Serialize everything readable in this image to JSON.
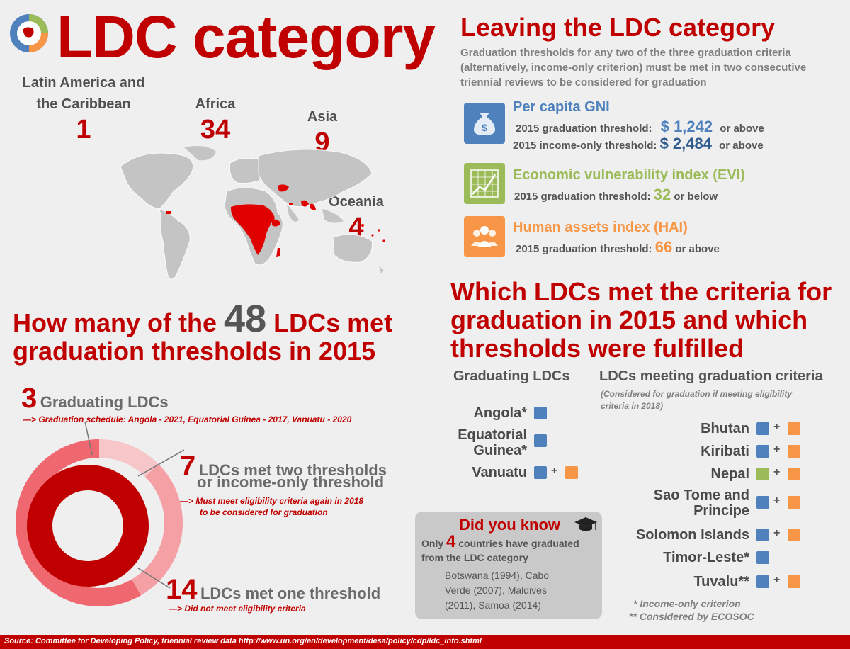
{
  "header": {
    "title": "LDC category"
  },
  "regions": [
    {
      "name_line1": "Latin America and",
      "name_line2": "the Caribbean",
      "count": "1"
    },
    {
      "name_line1": "Africa",
      "name_line2": "",
      "count": "34"
    },
    {
      "name_line1": "Asia",
      "name_line2": "",
      "count": "9"
    },
    {
      "name_line1": "Oceania",
      "name_line2": "",
      "count": "4"
    }
  ],
  "how_many": {
    "line1_pre": "How many of the ",
    "number": "48",
    "line1_post": " LDCs met",
    "line2": "graduation thresholds in 2015"
  },
  "stats": [
    {
      "number": "3",
      "label": "Graduating LDCs",
      "note": "—> Graduation schedule: Angola - 2021, Equatorial Guinea - 2017, Vanuatu - 2020",
      "note2": ""
    },
    {
      "number": "7",
      "label": "LDCs met two thresholds",
      "label2": "or income-only threshold",
      "note": "—> Must meet eligibility criteria again in 2018",
      "note2": "to be considered for graduation"
    },
    {
      "number": "14",
      "label": "LDCs met one threshold",
      "note": "—> Did not meet eligibility criteria",
      "note2": ""
    }
  ],
  "donut": {
    "values": [
      3,
      7,
      14
    ],
    "colors": [
      "#f7c6c9",
      "#f4a0a5",
      "#f0686f"
    ],
    "inner_color": "#c00000"
  },
  "leaving": {
    "title": "Leaving the LDC category",
    "desc": "Graduation thresholds for any two of the three graduation criteria (alternatively, income-only criterion) must be met in two consecutive triennial reviews to be considered for graduation"
  },
  "criteria": {
    "gni": {
      "title": "Per capita GNI",
      "line1_label": "2015 graduation threshold:",
      "line1_value": "$ 1,242",
      "line1_suffix": "or above",
      "line2_label": "2015 income-only threshold:",
      "line2_value": "$ 2,484",
      "line2_suffix": "or above",
      "color": "#4f81bd"
    },
    "evi": {
      "title": "Economic vulnerability index (EVI)",
      "line1_label": "2015 graduation threshold:",
      "line1_value": "32",
      "line1_suffix": "or below",
      "color": "#9bbb59"
    },
    "hai": {
      "title": "Human assets index (HAI)",
      "line1_label": "2015 graduation threshold:",
      "line1_value": "66",
      "line1_suffix": "or above",
      "color": "#f79646"
    }
  },
  "which": {
    "title": "Which LDCs met the criteria for graduation in 2015 and which thresholds were fulfilled",
    "col1_head": "Graduating LDCs",
    "col2_head": "LDCs meeting graduation criteria",
    "col2_note": "(Considered for graduation if meeting eligibility criteria in 2018)",
    "graduating": [
      "Angola*",
      "Equatorial",
      "Guinea*",
      "Vanuatu"
    ],
    "meeting": [
      "Bhutan",
      "Kiribati",
      "Nepal",
      "Sao Tome and",
      "Principe",
      "Solomon Islands",
      "Timor-Leste*",
      "Tuvalu**"
    ],
    "plus": "+",
    "footnote1": "* Income-only criterion",
    "footnote2": "** Considered by ECOSOC"
  },
  "did_you_know": {
    "title": "Did you know",
    "text_pre": "Only ",
    "number": "4",
    "text_post": " countries have graduated",
    "text2": "from the LDC category",
    "list1": "Botswana (1994), Cabo",
    "list2": "Verde (2007), Maldives",
    "list3": "(2011), Samoa (2014)"
  },
  "footer": {
    "text": "Source: Committee for Developing Policy, triennial review data http://www.un.org/en/development/desa/policy/cdp/ldc_info.shtml"
  }
}
